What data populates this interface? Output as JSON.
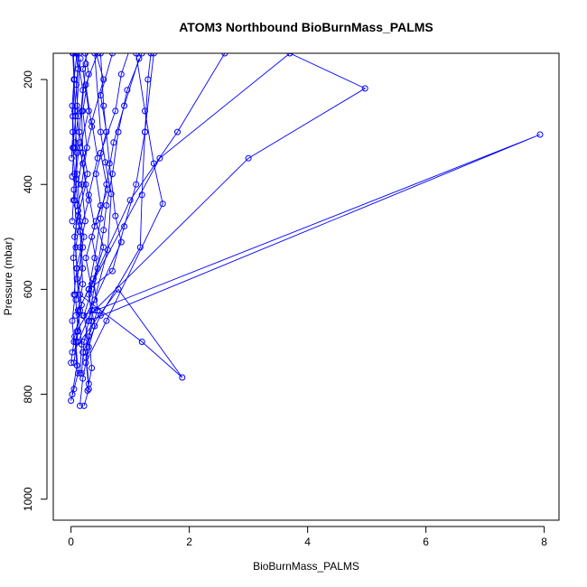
{
  "chart_data": {
    "type": "line",
    "title": "ATOM3 Northbound BioBurnMass_PALMS",
    "xlabel": "BioBurnMass_PALMS",
    "ylabel": "Pressure (mbar)",
    "xlim": [
      -0.3,
      8.25
    ],
    "ylim": [
      1040,
      150
    ],
    "y_reversed": true,
    "x_ticks": [
      0,
      2,
      4,
      6,
      8
    ],
    "y_ticks": [
      200,
      400,
      600,
      800,
      1000
    ],
    "grid": false,
    "legend": "none",
    "color": "#0000ff",
    "series": [
      {
        "points": [
          [
            0.0,
            812
          ],
          [
            0.05,
            790
          ],
          [
            0.12,
            760
          ],
          [
            0.08,
            700
          ],
          [
            0.15,
            640
          ],
          [
            0.1,
            580
          ],
          [
            0.2,
            520
          ],
          [
            0.12,
            460
          ],
          [
            0.25,
            400
          ],
          [
            0.15,
            330
          ],
          [
            0.3,
            260
          ],
          [
            0.2,
            180
          ],
          [
            0.35,
            120
          ]
        ]
      },
      {
        "points": [
          [
            0.02,
            800
          ],
          [
            0.1,
            745
          ],
          [
            0.06,
            690
          ],
          [
            0.18,
            630
          ],
          [
            0.09,
            560
          ],
          [
            0.22,
            500
          ],
          [
            0.1,
            440
          ],
          [
            0.28,
            380
          ],
          [
            0.14,
            300
          ],
          [
            0.2,
            220
          ],
          [
            0.1,
            150
          ]
        ]
      },
      {
        "points": [
          [
            0.15,
            822
          ],
          [
            0.2,
            770
          ],
          [
            0.3,
            710
          ],
          [
            0.22,
            650
          ],
          [
            0.35,
            600
          ],
          [
            0.25,
            540
          ],
          [
            0.4,
            480
          ],
          [
            0.3,
            420
          ],
          [
            0.45,
            350
          ],
          [
            0.35,
            280
          ],
          [
            0.55,
            200
          ],
          [
            0.4,
            140
          ]
        ]
      },
      {
        "points": [
          [
            0.22,
            822
          ],
          [
            0.3,
            790
          ],
          [
            0.25,
            730
          ],
          [
            0.4,
            670
          ],
          [
            0.3,
            610
          ],
          [
            0.45,
            560
          ],
          [
            0.35,
            500
          ],
          [
            0.5,
            440
          ],
          [
            0.42,
            380
          ],
          [
            0.6,
            300
          ],
          [
            0.5,
            230
          ],
          [
            0.7,
            150
          ]
        ]
      },
      {
        "points": [
          [
            0.05,
            740
          ],
          [
            0.12,
            680
          ],
          [
            0.08,
            620
          ],
          [
            0.2,
            560
          ],
          [
            0.15,
            490
          ],
          [
            0.3,
            430
          ],
          [
            0.2,
            360
          ],
          [
            0.35,
            290
          ],
          [
            0.25,
            210
          ],
          [
            0.45,
            150
          ]
        ]
      },
      {
        "points": [
          [
            0.28,
            793
          ],
          [
            0.35,
            750
          ],
          [
            0.3,
            690
          ],
          [
            0.45,
            640
          ],
          [
            0.38,
            580
          ],
          [
            0.55,
            520
          ],
          [
            0.42,
            470
          ],
          [
            0.62,
            410
          ],
          [
            0.5,
            340
          ],
          [
            0.75,
            260
          ],
          [
            0.85,
            190
          ],
          [
            1.0,
            140
          ]
        ]
      },
      {
        "points": [
          [
            0.3,
            780
          ],
          [
            0.25,
            720
          ],
          [
            0.35,
            660
          ],
          [
            0.3,
            600
          ],
          [
            0.4,
            540
          ],
          [
            0.5,
            465
          ],
          [
            0.6,
            400
          ],
          [
            0.72,
            320
          ],
          [
            0.9,
            250
          ],
          [
            1.15,
            160
          ]
        ]
      },
      {
        "points": [
          [
            0.01,
            350
          ],
          [
            0.03,
            300
          ],
          [
            0.02,
            250
          ],
          [
            0.05,
            200
          ],
          [
            0.03,
            150
          ]
        ]
      },
      {
        "points": [
          [
            0.02,
            470
          ],
          [
            0.04,
            430
          ],
          [
            0.06,
            380
          ],
          [
            0.03,
            330
          ],
          [
            0.08,
            270
          ],
          [
            0.05,
            200
          ],
          [
            0.1,
            150
          ]
        ]
      },
      {
        "points": [
          [
            0.1,
            560
          ],
          [
            0.08,
            520
          ],
          [
            0.15,
            470
          ],
          [
            0.12,
            400
          ],
          [
            0.2,
            340
          ],
          [
            0.18,
            260
          ],
          [
            0.25,
            170
          ]
        ]
      },
      {
        "points": [
          [
            0.05,
            610
          ],
          [
            0.1,
            560
          ],
          [
            0.06,
            500
          ],
          [
            0.12,
            450
          ],
          [
            0.08,
            390
          ],
          [
            0.14,
            320
          ],
          [
            0.1,
            250
          ],
          [
            0.16,
            160
          ]
        ]
      },
      {
        "points": [
          [
            0.18,
            760
          ],
          [
            0.22,
            700
          ],
          [
            0.3,
            660
          ],
          [
            0.55,
            487
          ],
          [
            0.6,
            440
          ],
          [
            0.7,
            380
          ],
          [
            0.8,
            300
          ],
          [
            0.95,
            220
          ],
          [
            1.2,
            150
          ]
        ]
      },
      {
        "points": [
          [
            0.08,
            650
          ],
          [
            0.3,
            600
          ],
          [
            0.7,
            565
          ],
          [
            0.9,
            480
          ],
          [
            1.1,
            400
          ],
          [
            1.25,
            300
          ],
          [
            1.4,
            150
          ]
        ]
      },
      {
        "points": [
          [
            0.1,
            680
          ],
          [
            0.4,
            620
          ],
          [
            0.85,
            510
          ],
          [
            0.75,
            460
          ],
          [
            0.65,
            360
          ],
          [
            0.55,
            250
          ],
          [
            0.5,
            150
          ]
        ]
      },
      {
        "points": [
          [
            0.12,
            700
          ],
          [
            0.35,
            640
          ],
          [
            0.62,
            525
          ],
          [
            0.68,
            418
          ],
          [
            0.58,
            358
          ],
          [
            0.5,
            300
          ],
          [
            0.4,
            150
          ]
        ]
      },
      {
        "points": [
          [
            0.2,
            720
          ],
          [
            0.5,
            650
          ],
          [
            1.17,
            520
          ],
          [
            1.2,
            420
          ],
          [
            1.25,
            300
          ],
          [
            1.3,
            200
          ],
          [
            1.35,
            150
          ]
        ]
      },
      {
        "points": [
          [
            0.25,
            740
          ],
          [
            0.6,
            660
          ],
          [
            1.55,
            437
          ],
          [
            1.4,
            360
          ],
          [
            1.25,
            260
          ],
          [
            1.1,
            150
          ]
        ]
      },
      {
        "points": [
          [
            0.02,
            720
          ],
          [
            0.8,
            600
          ],
          [
            1.88,
            768
          ],
          [
            1.2,
            700
          ],
          [
            0.15,
            610
          ]
        ]
      },
      {
        "points": [
          [
            0.3,
            600
          ],
          [
            1.0,
            430
          ],
          [
            1.8,
            300
          ],
          [
            2.6,
            150
          ]
        ]
      },
      {
        "points": [
          [
            0.35,
            590
          ],
          [
            1.5,
            350
          ],
          [
            3.7,
            150
          ],
          [
            4.97,
            217
          ],
          [
            3.0,
            350
          ],
          [
            0.4,
            640
          ]
        ]
      },
      {
        "points": [
          [
            0.3,
            660
          ],
          [
            7.93,
            305
          ],
          [
            0.2,
            650
          ]
        ]
      },
      {
        "points": [
          [
            0.0,
            740
          ],
          [
            0.05,
            700
          ],
          [
            0.02,
            660
          ],
          [
            0.07,
            610
          ],
          [
            0.04,
            540
          ],
          [
            0.09,
            480
          ],
          [
            0.05,
            410
          ],
          [
            0.1,
            340
          ],
          [
            0.06,
            260
          ],
          [
            0.12,
            180
          ],
          [
            0.08,
            150
          ]
        ]
      },
      {
        "points": [
          [
            0.06,
            430
          ],
          [
            0.1,
            380
          ],
          [
            0.07,
            320
          ],
          [
            0.12,
            270
          ],
          [
            0.09,
            210
          ],
          [
            0.14,
            150
          ]
        ]
      },
      {
        "points": [
          [
            0.15,
            760
          ],
          [
            0.18,
            705
          ],
          [
            0.12,
            640
          ],
          [
            0.2,
            590
          ],
          [
            0.15,
            520
          ],
          [
            0.24,
            470
          ],
          [
            0.18,
            400
          ],
          [
            0.27,
            330
          ],
          [
            0.2,
            260
          ],
          [
            0.3,
            190
          ],
          [
            0.24,
            150
          ]
        ]
      },
      {
        "points": [
          [
            0.02,
            385
          ],
          [
            0.05,
            330
          ],
          [
            0.03,
            270
          ],
          [
            0.06,
            200
          ],
          [
            0.04,
            150
          ]
        ]
      }
    ]
  }
}
